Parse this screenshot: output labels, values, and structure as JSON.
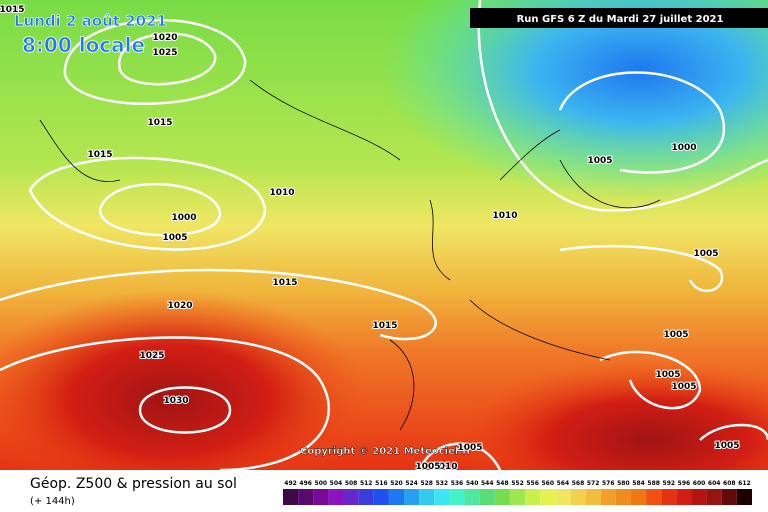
{
  "header": {
    "date": "Lundi 2 août 2021",
    "time": "8:00 locale",
    "run": "Run GFS 6 Z du Mardi 27 juillet 2021"
  },
  "copyright": "Copyright © 2021 Meteociel.fr",
  "footer": {
    "title": "Géop. Z500 & pression au sol",
    "lead": "(+ 144h)"
  },
  "isobar_labels": [
    "1015",
    "1020",
    "1025",
    "1015",
    "1015",
    "1010",
    "1000",
    "1005",
    "1015",
    "1020",
    "1025",
    "1030",
    "1015",
    "1010",
    "1005",
    "1000",
    "1005",
    "1005",
    "1005",
    "1005",
    "1005",
    "1010",
    "1005",
    "1005"
  ],
  "legend": {
    "ticks": [
      492,
      496,
      500,
      504,
      508,
      512,
      516,
      520,
      524,
      528,
      532,
      536,
      540,
      544,
      548,
      552,
      556,
      560,
      564,
      568,
      572,
      576,
      580,
      584,
      588,
      592,
      596,
      600,
      604,
      608,
      612
    ],
    "colors": [
      "#3c0a46",
      "#5a0a6e",
      "#780a96",
      "#8c14be",
      "#6428c8",
      "#3c3cdc",
      "#1e50f0",
      "#1e78f0",
      "#28a0f0",
      "#32c8f0",
      "#3ce6f0",
      "#46f0c8",
      "#50e6a0",
      "#5adc78",
      "#78dc50",
      "#a0e650",
      "#c8f050",
      "#e6f050",
      "#f0e664",
      "#f0d250",
      "#f0be3c",
      "#f0a028",
      "#f08c1e",
      "#f07814",
      "#f05014",
      "#e63214",
      "#d21e14",
      "#b41414",
      "#961414",
      "#640a0a",
      "#1e0000"
    ]
  }
}
